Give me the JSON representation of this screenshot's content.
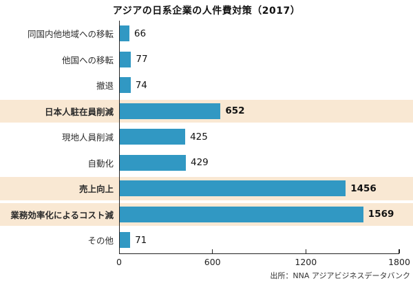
{
  "title": "アジアの日系企業の人件費対策（2017）",
  "chart_data": {
    "type": "bar",
    "orientation": "horizontal",
    "title": "アジアの日系企業の人件費対策（2017）",
    "categories": [
      "同国内他地域への移転",
      "他国への移転",
      "撤退",
      "日本人駐在員削減",
      "現地人員削減",
      "自動化",
      "売上向上",
      "業務効率化によるコスト減",
      "その他"
    ],
    "values": [
      66,
      77,
      74,
      652,
      425,
      429,
      1456,
      1569,
      71
    ],
    "highlighted_indices": [
      3,
      6,
      7
    ],
    "xlabel": "",
    "ylabel": "",
    "xlim": [
      0,
      1800
    ],
    "x_ticks": [
      0,
      600,
      1200,
      1800
    ],
    "grid": false,
    "legend": "none"
  },
  "source": "出所：NNA アジアビジネスデータバンク",
  "colors": {
    "bar": "#3198c3",
    "highlight_row": "#f9e8d3",
    "axis": "#222222",
    "title_text": "#111111",
    "label_text": "#2b2b2b"
  }
}
